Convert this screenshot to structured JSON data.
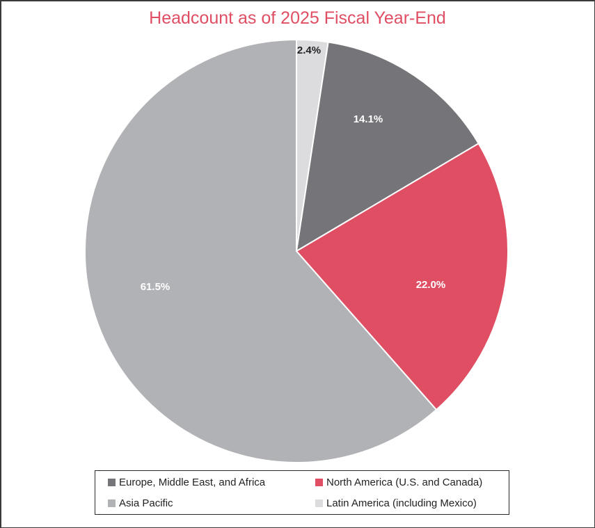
{
  "chart_data": {
    "type": "pie",
    "title": "Headcount as of 2025 Fiscal Year-End",
    "start_angle": "12 o'clock, clockwise",
    "slices": [
      {
        "label": "Latin America (including Mexico)",
        "value": 2.4,
        "display": "2.4%",
        "color": "#dcdcde"
      },
      {
        "label": "Europe, Middle East, and Africa",
        "value": 14.1,
        "display": "14.1%",
        "color": "#757579"
      },
      {
        "label": "North America (U.S. and Canada)",
        "value": 22.0,
        "display": "22.0%",
        "color": "#e04e63"
      },
      {
        "label": "Asia Pacific",
        "value": 61.5,
        "display": "61.5%",
        "color": "#b1b2b5"
      }
    ],
    "legend": {
      "position": "bottom",
      "entries": [
        {
          "label": "Europe, Middle East, and Africa",
          "color": "#757579"
        },
        {
          "label": "North America (U.S. and Canada)",
          "color": "#e04e63"
        },
        {
          "label": "Asia Pacific",
          "color": "#b1b2b5"
        },
        {
          "label": "Latin America (including Mexico)",
          "color": "#dcdcde"
        }
      ]
    }
  },
  "title": "Headcount as of 2025 Fiscal Year-End",
  "labels": {
    "latam": "2.4%",
    "emea": "14.1%",
    "na": "22.0%",
    "apac": "61.5%"
  },
  "legend": {
    "emea": "Europe, Middle East, and Africa",
    "na": "North America (U.S. and Canada)",
    "apac": "Asia Pacific",
    "latam": "Latin America (including Mexico)"
  },
  "colors": {
    "title": "#e04e63",
    "latam": "#dcdcde",
    "emea": "#757579",
    "na": "#e04e63",
    "apac": "#b1b2b5"
  }
}
